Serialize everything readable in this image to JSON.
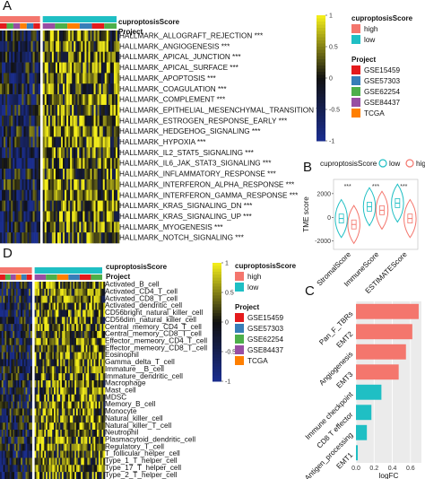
{
  "panels": {
    "A": "A",
    "B": "B",
    "C": "C",
    "D": "D"
  },
  "annotation_titles": {
    "score": "cuproptosisScore",
    "project": "Project"
  },
  "legends": {
    "score_title": "cuproptosisScore",
    "score_items": [
      {
        "label": "high",
        "color": "#f4766d"
      },
      {
        "label": "low",
        "color": "#1fbfc4"
      }
    ],
    "project_title": "Project",
    "project_items": [
      {
        "label": "GSE15459",
        "color": "#e41a1c"
      },
      {
        "label": "GSE57303",
        "color": "#377eb8"
      },
      {
        "label": "GSE62254",
        "color": "#4daf4a"
      },
      {
        "label": "GSE84437",
        "color": "#984ea3"
      },
      {
        "label": "TCGA",
        "color": "#ff7f00"
      }
    ]
  },
  "colorbar_A": {
    "ticks": [
      "1",
      "0.5",
      "0",
      "-0.5",
      "-1"
    ]
  },
  "colorbar_D": {
    "ticks": [
      "1",
      "0.5",
      "0",
      "-0.5",
      "-1"
    ]
  },
  "colors": {
    "high_blue": "#1a2d8c",
    "mid_black": "#111111",
    "high_yellow": "#f2ec1a"
  },
  "heatmap_A": {
    "rows": [
      "HALLMARK_ALLOGRAFT_REJECTION ***",
      "HALLMARK_ANGIOGENESIS ***",
      "HALLMARK_APICAL_JUNCTION ***",
      "HALLMARK_APICAL_SURFACE ***",
      "HALLMARK_APOPTOSIS ***",
      "HALLMARK_COAGULATION ***",
      "HALLMARK_COMPLEMENT ***",
      "HALLMARK_EPITHELIAL_MESENCHYMAL_TRANSITION ***",
      "HALLMARK_ESTROGEN_RESPONSE_EARLY ***",
      "HALLMARK_HEDGEHOG_SIGNALING ***",
      "HALLMARK_HYPOXIA ***",
      "HALLMARK_IL2_STAT5_SIGNALING ***",
      "HALLMARK_IL6_JAK_STAT3_SIGNALING ***",
      "HALLMARK_INFLAMMATORY_RESPONSE ***",
      "HALLMARK_INTERFERON_ALPHA_RESPONSE ***",
      "HALLMARK_INTERFERON_GAMMA_RESPONSE ***",
      "HALLMARK_KRAS_SIGNALING_DN ***",
      "HALLMARK_KRAS_SIGNALING_UP ***",
      "HALLMARK_MYOGENESIS ***",
      "HALLMARK_NOTCH_SIGNALING ***"
    ]
  },
  "heatmap_D": {
    "rows": [
      "Activated_B_cell",
      "Activated_CD4_T_cell",
      "Activated_CD8_T_cell",
      "Activated_dendritic_cell",
      "CD56bright_natural_killer_cell",
      "CD56dim_natural_killer_cell",
      "Central_memory_CD4_T_cell",
      "Central_memory_CD8_T_cell",
      "Effector_memeory_CD4_T_cell",
      "Effector_memeory_CD8_T_cell",
      "Eosinophil",
      "Gamma_delta_T_cell",
      "Immature__B_cell",
      "Immature_dendritic_cell",
      "Macrophage",
      "Mast_cell",
      "MDSC",
      "Memory_B_cell",
      "Monocyte",
      "Natural_killer_cell",
      "Natural_killer_T_cell",
      "Neutrophil",
      "Plasmacytoid_dendritic_cell",
      "Regulatory_T_cell",
      "T_follicular_helper_cell",
      "Type_1_T_helper_cell",
      "Type_17_T_helper_cell",
      "Type_2_T_helper_cell"
    ]
  },
  "chart_data": [
    {
      "type": "heatmap",
      "panel": "A",
      "rows": "heatmap_A.rows",
      "groups": [
        "high",
        "low"
      ],
      "colorbar_range": [
        -1,
        1
      ]
    },
    {
      "type": "violin",
      "panel": "B",
      "legend_title": "cuproptosisScore",
      "legend": [
        "low",
        "high"
      ],
      "ylabel": "TME score",
      "yticks": [
        "2000",
        "0",
        "-2000"
      ],
      "ylim": [
        -2700,
        3200
      ],
      "categories": [
        "StromalScore",
        "ImmuneScore",
        "ESTIMATEScore"
      ],
      "significance": [
        "***",
        "***",
        "***"
      ],
      "series": [
        {
          "name": "low",
          "color": "#1fbfc4",
          "medians": [
            -100,
            900,
            1200
          ]
        },
        {
          "name": "high",
          "color": "#f4766d",
          "medians": [
            -600,
            600,
            -100
          ]
        }
      ]
    },
    {
      "type": "bar",
      "panel": "C",
      "orientation": "horizontal",
      "categories": [
        "Pan_F_TBRs",
        "EMT2",
        "Angiogenesis",
        "EMT3",
        "Immune checkpoint",
        "CD8 T effector",
        "Antigen_processing",
        "EMT1"
      ],
      "values": [
        0.69,
        0.62,
        0.55,
        0.47,
        0.28,
        0.17,
        0.12,
        0.02
      ],
      "colors": [
        "#f4766d",
        "#f4766d",
        "#f4766d",
        "#f4766d",
        "#1fbfc4",
        "#1fbfc4",
        "#1fbfc4",
        "#1fbfc4"
      ],
      "xlabel": "logFC",
      "xticks": [
        "0.0",
        "0.2",
        "0.4",
        "0.6"
      ],
      "xlim": [
        0,
        0.72
      ]
    },
    {
      "type": "heatmap",
      "panel": "D",
      "rows": "heatmap_D.rows",
      "groups": [
        "high",
        "low"
      ],
      "colorbar_range": [
        -1,
        1
      ]
    }
  ]
}
